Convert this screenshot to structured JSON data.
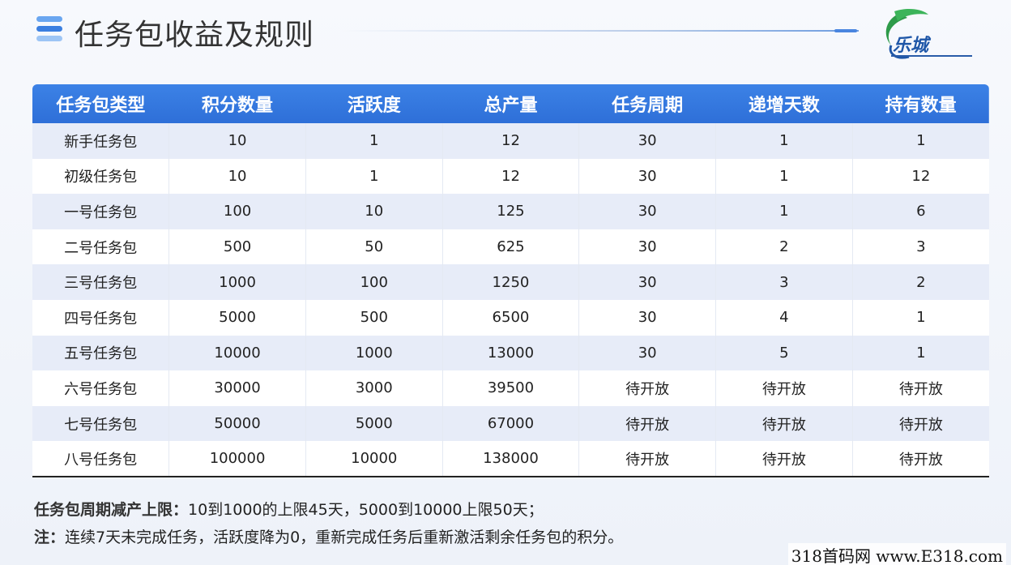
{
  "header": {
    "title": "任务包收益及规则",
    "logo_text": "乐城"
  },
  "table": {
    "columns": [
      "任务包类型",
      "积分数量",
      "活跃度",
      "总产量",
      "任务周期",
      "递增天数",
      "持有数量"
    ],
    "rows": [
      [
        "新手任务包",
        "10",
        "1",
        "12",
        "30",
        "1",
        "1"
      ],
      [
        "初级任务包",
        "10",
        "1",
        "12",
        "30",
        "1",
        "12"
      ],
      [
        "一号任务包",
        "100",
        "10",
        "125",
        "30",
        "1",
        "6"
      ],
      [
        "二号任务包",
        "500",
        "50",
        "625",
        "30",
        "2",
        "3"
      ],
      [
        "三号任务包",
        "1000",
        "100",
        "1250",
        "30",
        "3",
        "2"
      ],
      [
        "四号任务包",
        "5000",
        "500",
        "6500",
        "30",
        "4",
        "1"
      ],
      [
        "五号任务包",
        "10000",
        "1000",
        "13000",
        "30",
        "5",
        "1"
      ],
      [
        "六号任务包",
        "30000",
        "3000",
        "39500",
        "待开放",
        "待开放",
        "待开放"
      ],
      [
        "七号任务包",
        "50000",
        "5000",
        "67000",
        "待开放",
        "待开放",
        "待开放"
      ],
      [
        "八号任务包",
        "100000",
        "10000",
        "138000",
        "待开放",
        "待开放",
        "待开放"
      ]
    ]
  },
  "notes": {
    "line1_label": "任务包周期减产上限：",
    "line1_text": "10到1000的上限45天，5000到10000上限50天；",
    "line2_label": "注：",
    "line2_text": "连续7天未完成任务，活跃度降为0，重新完成任务后重新激活剩余任务包的积分。"
  },
  "watermark": "318首码网 www.E318.com",
  "colors": {
    "header_bg": "#3c82e6",
    "row_alt": "#e7ecf8",
    "accent": "#4a86e0"
  }
}
